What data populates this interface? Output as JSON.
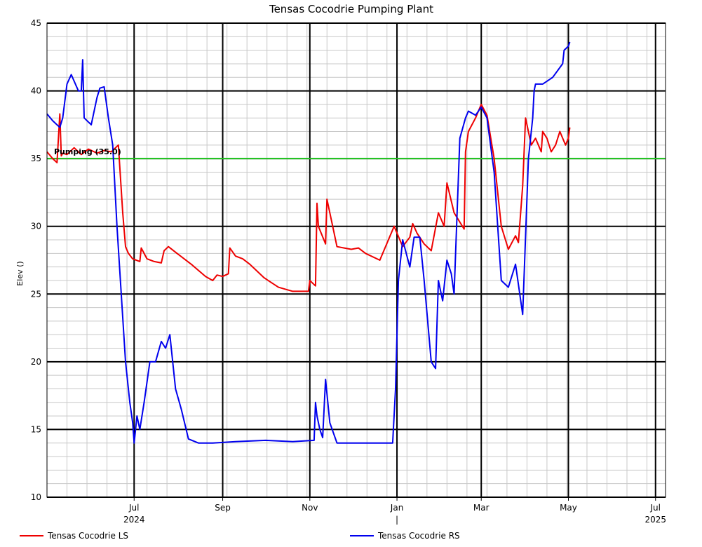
{
  "chart_data": {
    "type": "line",
    "title": "Tensas Cocodrie Pumping Plant",
    "ylabel": "Elev ()",
    "xlabel": "",
    "ylim": [
      10,
      45
    ],
    "yticks": [
      10,
      15,
      20,
      25,
      30,
      35,
      40,
      45
    ],
    "xlim": [
      "2024-05-01",
      "2025-07-08"
    ],
    "xticks": [
      {
        "date": "2024-07-01",
        "label": "Jul",
        "sublabel": "2024"
      },
      {
        "date": "2024-09-01",
        "label": "Sep",
        "sublabel": ""
      },
      {
        "date": "2024-11-01",
        "label": "Nov",
        "sublabel": ""
      },
      {
        "date": "2025-01-01",
        "label": "Jan",
        "sublabel": "|"
      },
      {
        "date": "2025-03-01",
        "label": "Mar",
        "sublabel": ""
      },
      {
        "date": "2025-05-01",
        "label": "May",
        "sublabel": ""
      },
      {
        "date": "2025-07-01",
        "label": "Jul",
        "sublabel": "2025"
      }
    ],
    "grid": true,
    "legend_position": "bottom",
    "reference_line": {
      "value": 35.0,
      "label": "Pumping (35.0)",
      "color": "#22cc22"
    },
    "series": [
      {
        "name": "Tensas Cocodrie LS",
        "color": "#ee0000",
        "x": [
          "2024-05-01",
          "2024-05-05",
          "2024-05-08",
          "2024-05-10",
          "2024-05-11",
          "2024-05-12",
          "2024-05-15",
          "2024-05-20",
          "2024-05-25",
          "2024-05-30",
          "2024-06-05",
          "2024-06-10",
          "2024-06-15",
          "2024-06-20",
          "2024-06-23",
          "2024-06-25",
          "2024-06-27",
          "2024-06-30",
          "2024-07-05",
          "2024-07-06",
          "2024-07-10",
          "2024-07-15",
          "2024-07-20",
          "2024-07-22",
          "2024-07-25",
          "2024-07-31",
          "2024-08-10",
          "2024-08-20",
          "2024-08-25",
          "2024-08-28",
          "2024-09-01",
          "2024-09-05",
          "2024-09-06",
          "2024-09-10",
          "2024-09-15",
          "2024-09-20",
          "2024-09-30",
          "2024-10-10",
          "2024-10-20",
          "2024-10-31",
          "2024-11-01",
          "2024-11-05",
          "2024-11-06",
          "2024-11-07",
          "2024-11-12",
          "2024-11-13",
          "2024-11-17",
          "2024-11-20",
          "2024-11-25",
          "2024-11-30",
          "2024-12-05",
          "2024-12-10",
          "2024-12-20",
          "2024-12-30",
          "2025-01-01",
          "2025-01-05",
          "2025-01-10",
          "2025-01-12",
          "2025-01-15",
          "2025-01-20",
          "2025-01-25",
          "2025-01-30",
          "2025-02-03",
          "2025-02-05",
          "2025-02-10",
          "2025-02-17",
          "2025-02-18",
          "2025-02-20",
          "2025-02-25",
          "2025-03-01",
          "2025-03-05",
          "2025-03-10",
          "2025-03-15",
          "2025-03-20",
          "2025-03-25",
          "2025-03-27",
          "2025-03-30",
          "2025-04-01",
          "2025-04-05",
          "2025-04-08",
          "2025-04-12",
          "2025-04-13",
          "2025-04-16",
          "2025-04-19",
          "2025-04-22",
          "2025-04-25",
          "2025-04-29",
          "2025-05-01",
          "2025-05-02"
        ],
        "y": [
          35.5,
          35.0,
          34.7,
          38.3,
          35.2,
          35.4,
          35.3,
          35.8,
          35.3,
          35.7,
          35.4,
          35.6,
          35.5,
          36.0,
          31.0,
          28.5,
          28.0,
          27.6,
          27.4,
          28.4,
          27.6,
          27.4,
          27.3,
          28.2,
          28.5,
          28.0,
          27.2,
          26.3,
          26.0,
          26.4,
          26.3,
          26.5,
          28.4,
          27.8,
          27.6,
          27.2,
          26.2,
          25.5,
          25.2,
          25.2,
          26.0,
          25.6,
          31.7,
          30.0,
          28.7,
          32.0,
          30.0,
          28.5,
          28.4,
          28.3,
          28.4,
          28.0,
          27.5,
          30.0,
          29.5,
          28.5,
          29.2,
          30.2,
          29.5,
          28.7,
          28.2,
          31.0,
          30.0,
          33.2,
          31.0,
          29.8,
          35.5,
          37.0,
          38.0,
          39.0,
          38.2,
          35.0,
          30.0,
          28.3,
          29.3,
          28.8,
          33.0,
          38.0,
          36.0,
          36.5,
          35.5,
          37.0,
          36.5,
          35.5,
          36.0,
          37.0,
          36.0,
          36.5,
          37.3
        ]
      },
      {
        "name": "Tensas Cocodrie RS",
        "color": "#0000ee",
        "x": [
          "2024-05-01",
          "2024-05-05",
          "2024-05-10",
          "2024-05-12",
          "2024-05-15",
          "2024-05-18",
          "2024-05-23",
          "2024-05-25",
          "2024-05-26",
          "2024-05-27",
          "2024-06-01",
          "2024-06-05",
          "2024-06-07",
          "2024-06-10",
          "2024-06-13",
          "2024-06-16",
          "2024-06-19",
          "2024-06-22",
          "2024-06-25",
          "2024-06-28",
          "2024-06-30",
          "2024-07-01",
          "2024-07-03",
          "2024-07-05",
          "2024-07-08",
          "2024-07-12",
          "2024-07-16",
          "2024-07-20",
          "2024-07-23",
          "2024-07-26",
          "2024-07-30",
          "2024-08-03",
          "2024-08-08",
          "2024-08-15",
          "2024-08-25",
          "2024-09-10",
          "2024-10-01",
          "2024-10-20",
          "2024-11-04",
          "2024-11-05",
          "2024-11-06",
          "2024-11-08",
          "2024-11-10",
          "2024-11-12",
          "2024-11-15",
          "2024-11-20",
          "2024-12-01",
          "2024-12-15",
          "2024-12-29",
          "2024-12-31",
          "2025-01-02",
          "2025-01-05",
          "2025-01-10",
          "2025-01-13",
          "2025-01-17",
          "2025-01-20",
          "2025-01-25",
          "2025-01-28",
          "2025-01-30",
          "2025-02-02",
          "2025-02-05",
          "2025-02-08",
          "2025-02-10",
          "2025-02-14",
          "2025-02-18",
          "2025-02-20",
          "2025-02-25",
          "2025-03-01",
          "2025-03-05",
          "2025-03-10",
          "2025-03-15",
          "2025-03-20",
          "2025-03-25",
          "2025-03-30",
          "2025-04-03",
          "2025-04-06",
          "2025-04-07",
          "2025-04-08",
          "2025-04-10",
          "2025-04-13",
          "2025-04-20",
          "2025-04-27",
          "2025-04-28",
          "2025-05-01",
          "2025-05-02"
        ],
        "y": [
          38.3,
          37.8,
          37.3,
          38.0,
          40.5,
          41.2,
          40.0,
          40.0,
          42.3,
          38.0,
          37.5,
          39.5,
          40.2,
          40.3,
          38.0,
          36.0,
          30.0,
          25.0,
          20.0,
          17.0,
          15.5,
          14.0,
          16.0,
          15.0,
          17.0,
          20.0,
          20.0,
          21.5,
          21.0,
          22.0,
          18.0,
          16.5,
          14.3,
          14.0,
          14.0,
          14.1,
          14.2,
          14.1,
          14.2,
          17.0,
          16.0,
          15.0,
          14.4,
          18.7,
          15.5,
          14.0,
          14.0,
          14.0,
          14.0,
          18.0,
          26.0,
          29.0,
          27.0,
          29.2,
          29.2,
          26.0,
          20.0,
          19.5,
          26.0,
          24.5,
          27.5,
          26.5,
          25.0,
          36.5,
          38.0,
          38.5,
          38.2,
          38.8,
          38.0,
          34.0,
          26.0,
          25.5,
          27.2,
          23.5,
          35.0,
          38.0,
          40.0,
          40.5,
          40.5,
          40.5,
          41.0,
          42.0,
          43.0,
          43.3,
          43.6
        ]
      }
    ]
  },
  "legend": {
    "items": [
      {
        "label": "Tensas Cocodrie LS",
        "color": "#ee0000"
      },
      {
        "label": "Tensas Cocodrie RS",
        "color": "#0000ee"
      }
    ]
  }
}
